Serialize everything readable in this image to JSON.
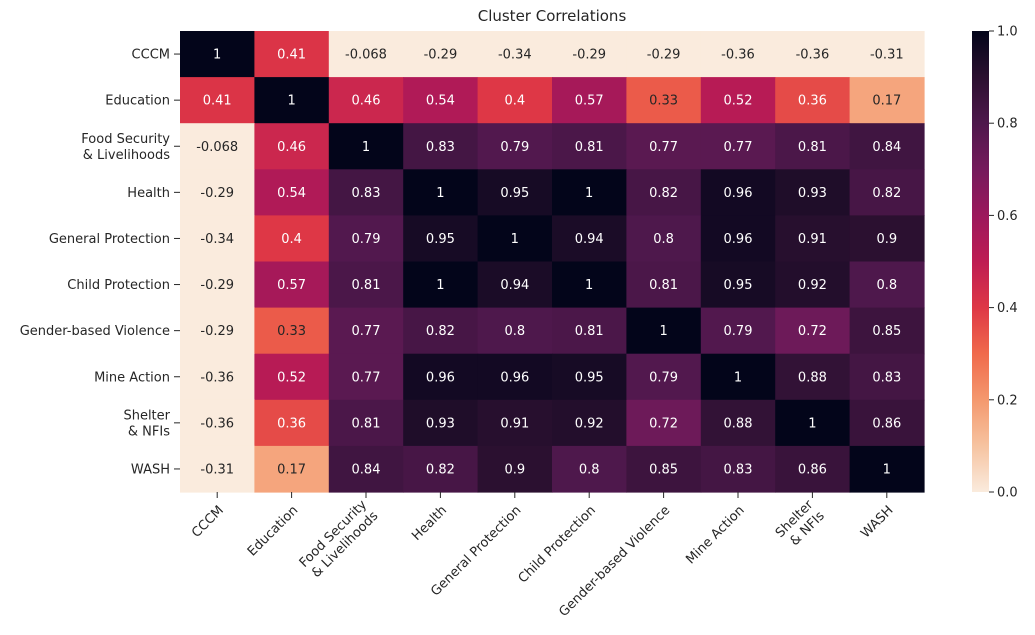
{
  "chart_data": {
    "type": "heatmap",
    "title": "Cluster Correlations",
    "row_labels": [
      "CCCM",
      "Education",
      "Food Security\n& Livelihoods",
      "Health",
      "General Protection",
      "Child Protection",
      "Gender-based Violence",
      "Mine Action",
      "Shelter\n& NFIs",
      "WASH"
    ],
    "col_labels": [
      "CCCM",
      "Education",
      "Food Security\n& Livelihoods",
      "Health",
      "General Protection",
      "Child Protection",
      "Gender-based Violence",
      "Mine Action",
      "Shelter\n& NFIs",
      "WASH"
    ],
    "values": [
      [
        1,
        0.41,
        -0.068,
        -0.29,
        -0.34,
        -0.29,
        -0.29,
        -0.36,
        -0.36,
        -0.31
      ],
      [
        0.41,
        1,
        0.46,
        0.54,
        0.4,
        0.57,
        0.33,
        0.52,
        0.36,
        0.17
      ],
      [
        -0.068,
        0.46,
        1,
        0.83,
        0.79,
        0.81,
        0.77,
        0.77,
        0.81,
        0.84
      ],
      [
        -0.29,
        0.54,
        0.83,
        1,
        0.95,
        1,
        0.82,
        0.96,
        0.93,
        0.82
      ],
      [
        -0.34,
        0.4,
        0.79,
        0.95,
        1,
        0.94,
        0.8,
        0.96,
        0.91,
        0.9
      ],
      [
        -0.29,
        0.57,
        0.81,
        1,
        0.94,
        1,
        0.81,
        0.95,
        0.92,
        0.8
      ],
      [
        -0.29,
        0.33,
        0.77,
        0.82,
        0.8,
        0.81,
        1,
        0.79,
        0.72,
        0.85
      ],
      [
        -0.36,
        0.52,
        0.77,
        0.96,
        0.96,
        0.95,
        0.79,
        1,
        0.88,
        0.83
      ],
      [
        -0.36,
        0.36,
        0.81,
        0.93,
        0.91,
        0.92,
        0.72,
        0.88,
        1,
        0.86
      ],
      [
        -0.31,
        0.17,
        0.84,
        0.82,
        0.9,
        0.8,
        0.85,
        0.83,
        0.86,
        1
      ]
    ],
    "color_range": [
      0,
      1
    ],
    "colormap": "rocket_r",
    "colorbar_ticks": [
      0.0,
      0.2,
      0.4,
      0.6,
      0.8,
      1.0
    ],
    "colorbar_tick_labels": [
      "0.0",
      "0.2",
      "0.4",
      "0.6",
      "0.8",
      "1.0"
    ],
    "annotate": true,
    "grid": false,
    "legend": "colorbar-right"
  }
}
